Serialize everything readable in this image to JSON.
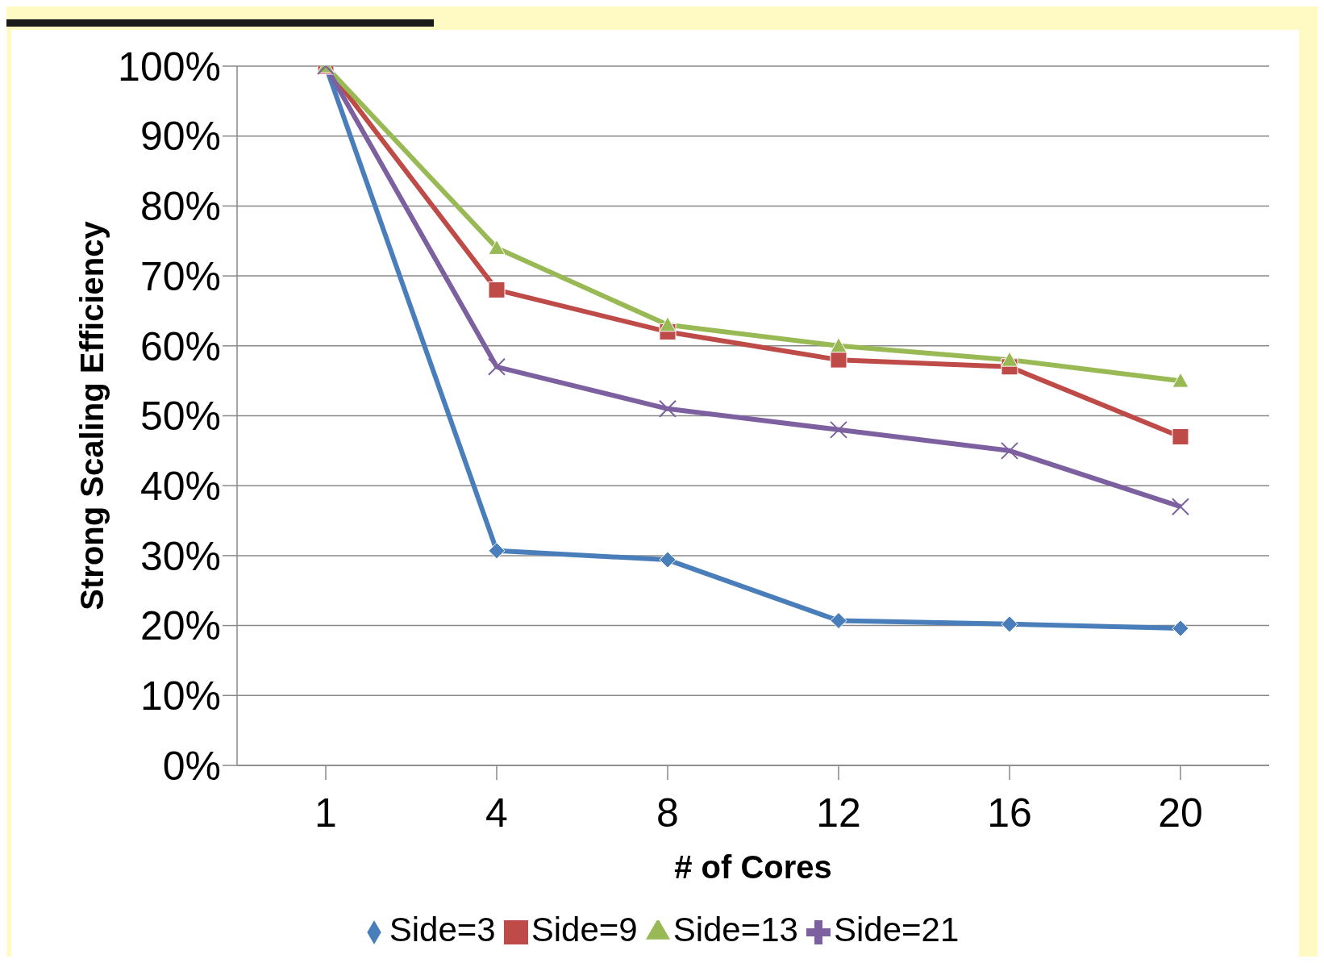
{
  "chart_data": {
    "type": "line",
    "xlabel": "# of Cores",
    "ylabel": "Strong Scaling Efficiency",
    "categories": [
      "1",
      "4",
      "8",
      "12",
      "16",
      "20"
    ],
    "series": [
      {
        "name": "Side=3",
        "color": "#4a7ebb",
        "marker": "diamond",
        "values": [
          100,
          30.7,
          29.4,
          20.7,
          20.2,
          19.6
        ]
      },
      {
        "name": "Side=9",
        "color": "#be4b48",
        "marker": "square",
        "values": [
          100,
          68,
          62,
          58,
          57,
          47
        ]
      },
      {
        "name": "Side=13",
        "color": "#98b954",
        "marker": "triangle",
        "values": [
          100,
          74,
          63,
          60,
          58,
          55
        ]
      },
      {
        "name": "Side=21",
        "color": "#7d60a0",
        "marker": "cross",
        "values": [
          100,
          57,
          51,
          48,
          45,
          37
        ]
      }
    ],
    "ylim": [
      0,
      100
    ],
    "yticks": [
      {
        "value": 0,
        "label": "0%"
      },
      {
        "value": 10,
        "label": "10%"
      },
      {
        "value": 20,
        "label": "20%"
      },
      {
        "value": 30,
        "label": "30%"
      },
      {
        "value": 40,
        "label": "40%"
      },
      {
        "value": 50,
        "label": "50%"
      },
      {
        "value": 60,
        "label": "60%"
      },
      {
        "value": 70,
        "label": "70%"
      },
      {
        "value": 80,
        "label": "80%"
      },
      {
        "value": 90,
        "label": "90%"
      },
      {
        "value": 100,
        "label": "100%"
      }
    ],
    "grid": "y",
    "legend": "bottom",
    "line_style": "solid"
  }
}
